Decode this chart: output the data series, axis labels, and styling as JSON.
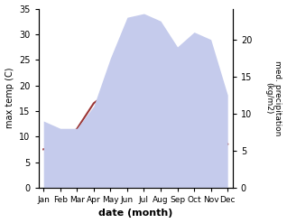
{
  "months": [
    "Jan",
    "Feb",
    "Mar",
    "Apr",
    "May",
    "Jun",
    "Jul",
    "Aug",
    "Sep",
    "Oct",
    "Nov",
    "Dec"
  ],
  "max_temp": [
    7.5,
    8.5,
    11.5,
    16.5,
    19.0,
    22.5,
    25.5,
    26.0,
    25.0,
    19.0,
    12.5,
    8.5
  ],
  "precipitation": [
    9.0,
    8.0,
    8.0,
    11.0,
    17.5,
    23.0,
    23.5,
    22.5,
    19.0,
    21.0,
    20.0,
    12.5
  ],
  "temp_color": "#9b3535",
  "precip_fill_color": "#c5cbec",
  "temp_ylim": [
    0,
    35
  ],
  "precip_ylim": [
    0,
    24.17
  ],
  "ylabel_left": "max temp (C)",
  "ylabel_right": "med. precipitation\n(kg/m2)",
  "xlabel": "date (month)",
  "left_ticks": [
    0,
    5,
    10,
    15,
    20,
    25,
    30,
    35
  ],
  "right_ticks": [
    0,
    5,
    10,
    15,
    20
  ],
  "bg_color": "#ffffff"
}
